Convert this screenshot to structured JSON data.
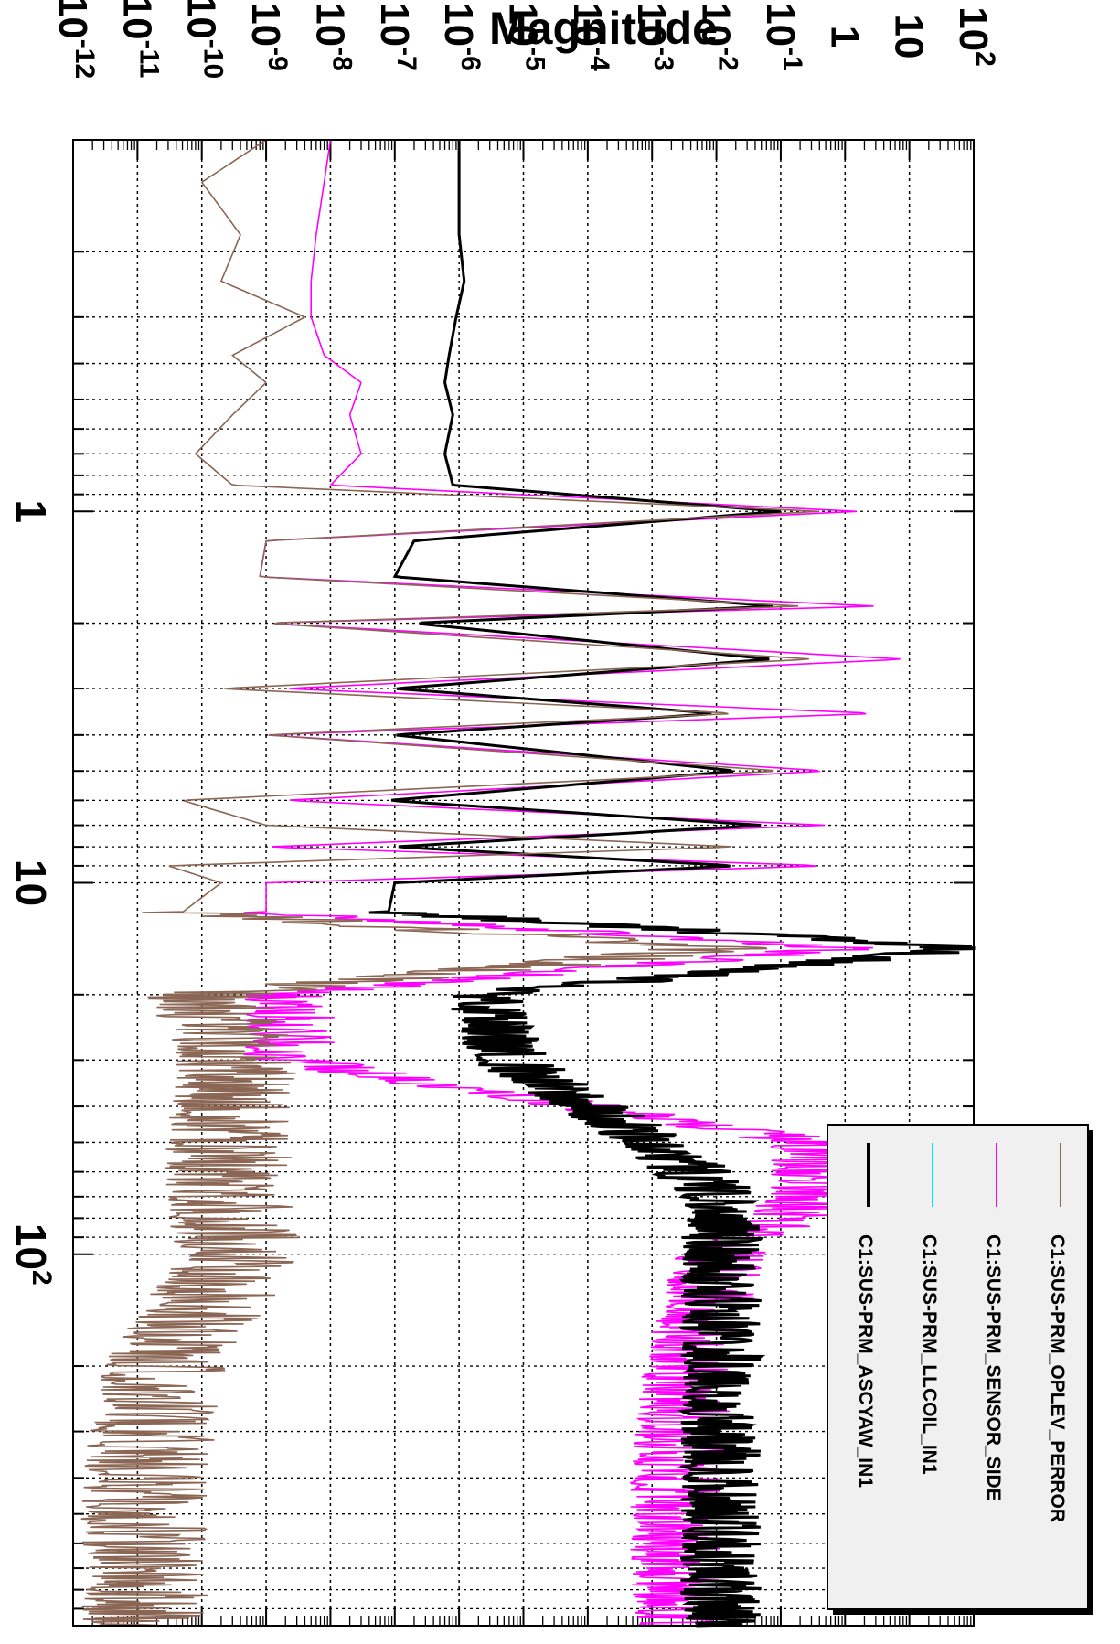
{
  "chart_data": {
    "type": "line",
    "orientation": "rotated 90 degrees clockwise",
    "title": "",
    "ylabel": "Magnitude",
    "xlabel": "",
    "x_scale": "log",
    "y_scale": "log",
    "xlim": [
      0.1,
      1000
    ],
    "ylim": [
      1e-12,
      100
    ],
    "grid": true,
    "legend_position": "top-right",
    "x_tick_labels": [
      {
        "value": 1,
        "base": "1",
        "exp": ""
      },
      {
        "value": 10,
        "base": "10",
        "exp": ""
      },
      {
        "value": 100,
        "base": "10",
        "exp": "2"
      }
    ],
    "y_tick_labels": [
      {
        "value": 1e-12,
        "base": "10",
        "exp": "-12"
      },
      {
        "value": 1e-11,
        "base": "10",
        "exp": "-11"
      },
      {
        "value": 1e-10,
        "base": "10",
        "exp": "-10"
      },
      {
        "value": 1e-09,
        "base": "10",
        "exp": "-9"
      },
      {
        "value": 1e-08,
        "base": "10",
        "exp": "-8"
      },
      {
        "value": 1e-07,
        "base": "10",
        "exp": "-7"
      },
      {
        "value": 1e-06,
        "base": "10",
        "exp": "-6"
      },
      {
        "value": 1e-05,
        "base": "10",
        "exp": "-5"
      },
      {
        "value": 0.0001,
        "base": "10",
        "exp": "-4"
      },
      {
        "value": 0.001,
        "base": "10",
        "exp": "-3"
      },
      {
        "value": 0.01,
        "base": "10",
        "exp": "-2"
      },
      {
        "value": 0.1,
        "base": "10",
        "exp": "-1"
      },
      {
        "value": 1,
        "base": "1",
        "exp": ""
      },
      {
        "value": 10,
        "base": "10",
        "exp": ""
      },
      {
        "value": 100,
        "base": "10",
        "exp": "2"
      }
    ],
    "series": [
      {
        "name": "C1:SUS-PRM_OPLEV_PERROR",
        "color": "#8b6654",
        "x": [
          0.1,
          0.13,
          0.18,
          0.24,
          0.3,
          0.38,
          0.45,
          0.55,
          0.7,
          0.85,
          1.0,
          1.2,
          1.5,
          1.8,
          2.0,
          2.5,
          3.0,
          3.5,
          4.0,
          5.0,
          6.0,
          7.0,
          8.0,
          9.0,
          10.0,
          12.0,
          15.0,
          20.0,
          30.0,
          50.0,
          70.0,
          100.0,
          200.0,
          400.0,
          800.0
        ],
        "y": [
          1e-09,
          1e-10,
          4e-10,
          2e-10,
          4e-09,
          3e-10,
          1e-09,
          3e-10,
          8e-11,
          3e-10,
          0.4,
          1e-09,
          8e-10,
          0.2,
          1e-09,
          0.3,
          2e-10,
          0.02,
          1e-09,
          0.1,
          5e-11,
          1e-09,
          0.02,
          3e-11,
          2e-10,
          5e-11,
          0.01,
          1e-10,
          3e-10,
          2e-10,
          2e-10,
          3e-10,
          2e-11,
          1e-11,
          1e-11
        ]
      },
      {
        "name": "C1:SUS-PRM_SENSOR_SIDE",
        "color": "#ff00ff",
        "x": [
          0.1,
          0.13,
          0.18,
          0.24,
          0.3,
          0.38,
          0.45,
          0.55,
          0.7,
          0.85,
          1.0,
          1.2,
          1.5,
          1.8,
          2.0,
          2.5,
          3.0,
          3.5,
          4.0,
          5.0,
          6.0,
          7.0,
          8.0,
          9.0,
          10.0,
          12.0,
          15.0,
          20.0,
          30.0,
          50.0,
          70.0,
          100.0,
          200.0,
          400.0,
          800.0
        ],
        "y": [
          1e-08,
          8e-09,
          6e-09,
          5e-09,
          5e-09,
          8e-09,
          3e-08,
          2e-08,
          3e-08,
          1e-08,
          1.5,
          1e-09,
          8e-10,
          3,
          1e-09,
          8,
          2e-09,
          3,
          1e-09,
          0.5,
          2e-09,
          0.5,
          1e-09,
          0.5,
          1e-09,
          1e-09,
          1,
          2e-09,
          2e-09,
          0.3,
          0.3,
          0.01,
          0.003,
          0.002,
          0.002
        ]
      },
      {
        "name": "C1:SUS-PRM_LLCOIL_IN1",
        "color": "#00e5ee",
        "x": [],
        "y": []
      },
      {
        "name": "C1:SUS-PRM_ASCYAW_IN1",
        "color": "#000000",
        "x": [
          0.1,
          0.13,
          0.18,
          0.24,
          0.3,
          0.38,
          0.45,
          0.55,
          0.7,
          0.85,
          1.0,
          1.2,
          1.5,
          1.8,
          2.0,
          2.5,
          3.0,
          3.5,
          4.0,
          5.0,
          6.0,
          7.0,
          8.0,
          9.0,
          10.0,
          12.0,
          15.0,
          20.0,
          30.0,
          50.0,
          70.0,
          100.0,
          200.0,
          400.0,
          800.0
        ],
        "y": [
          1e-06,
          1e-06,
          1e-06,
          1.2e-06,
          9e-07,
          7e-07,
          6e-07,
          8e-07,
          6e-07,
          8e-07,
          0.1,
          2e-07,
          1e-07,
          0.08,
          2e-07,
          0.07,
          1e-07,
          0.01,
          1e-07,
          0.02,
          8e-08,
          0.05,
          1e-07,
          0.02,
          1e-07,
          8e-08,
          100,
          2e-06,
          5e-06,
          0.001,
          0.01,
          0.01,
          0.01,
          0.01,
          0.01
        ]
      }
    ]
  }
}
